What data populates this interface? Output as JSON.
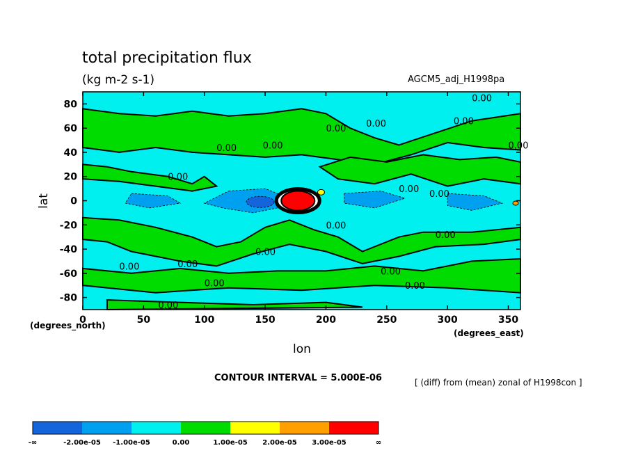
{
  "chart_data": {
    "type": "contour",
    "title": "total precipitation flux",
    "units": "(kg m-2 s-1)",
    "dataset": "AGCM5_adj_H1998pa",
    "xlabel": "lon",
    "ylabel": "lat",
    "x_unit_note": "(degrees_east)",
    "y_unit_note": "(degrees_north)",
    "xlim": [
      0,
      360
    ],
    "ylim": [
      -90,
      90
    ],
    "x_ticks": [
      0,
      50,
      100,
      150,
      200,
      250,
      300,
      350
    ],
    "y_ticks": [
      80,
      60,
      40,
      20,
      0,
      -20,
      -40,
      -60,
      -80
    ],
    "contour_interval": "CONTOUR INTERVAL = 5.000E-06",
    "operation": "[ (diff) from (mean) zonal of H1998con ]",
    "contour_label": "0.00",
    "colorbar": {
      "colors": [
        "#1464dc",
        "#00a0f0",
        "#00f0f0",
        "#00dc00",
        "#ffff00",
        "#ffa000",
        "#ff0000"
      ],
      "labels": [
        "-∞",
        "-2.00e-05",
        "-1.00e-05",
        "0.00",
        "1.00e-05",
        "2.00e-05",
        "3.00e-05",
        "∞"
      ]
    }
  }
}
